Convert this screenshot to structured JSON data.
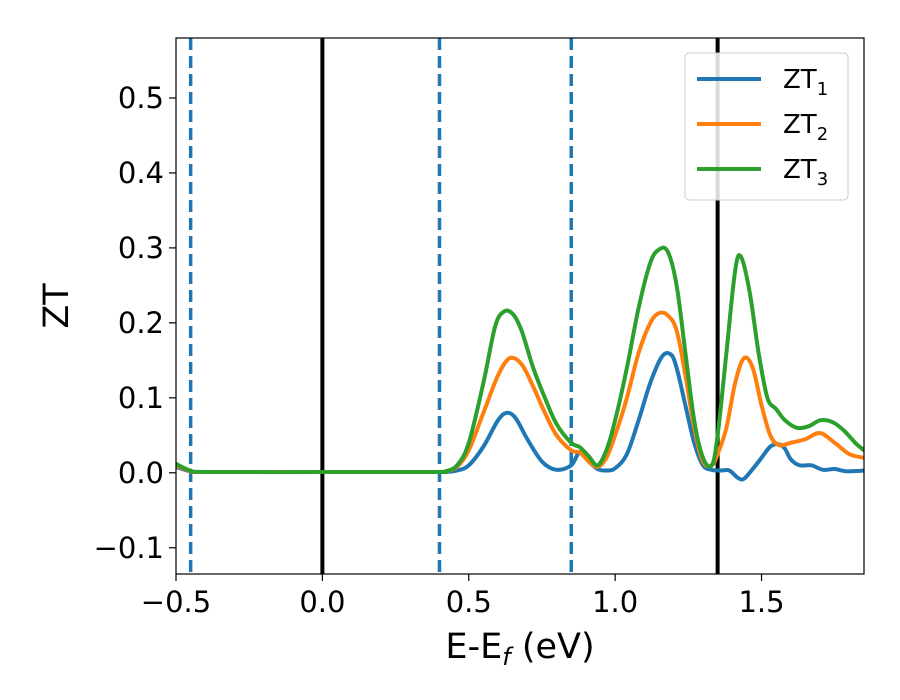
{
  "chart_data": {
    "type": "line",
    "title": "",
    "xlabel": {
      "main": "E-E",
      "sub": "f",
      "tail": " (eV)"
    },
    "ylabel": "ZT",
    "xlim": [
      -0.5,
      1.85
    ],
    "ylim": [
      -0.135,
      0.58
    ],
    "xticks": [
      -0.5,
      0.0,
      0.5,
      1.0,
      1.5
    ],
    "xtick_labels": [
      "−0.5",
      "0.0",
      "0.5",
      "1.0",
      "1.5"
    ],
    "yticks": [
      -0.1,
      0.0,
      0.1,
      0.2,
      0.3,
      0.4,
      0.5
    ],
    "ytick_labels": [
      "−0.1",
      "0.0",
      "0.1",
      "0.2",
      "0.3",
      "0.4",
      "0.5"
    ],
    "grid": false,
    "legend_position": "top-right",
    "vlines": [
      {
        "x": -0.45,
        "style": "dashed",
        "color": "#1f77b4"
      },
      {
        "x": 0.0,
        "style": "solid",
        "color": "#000000"
      },
      {
        "x": 0.4,
        "style": "dashed",
        "color": "#1f77b4"
      },
      {
        "x": 0.85,
        "style": "dashed",
        "color": "#1f77b4"
      },
      {
        "x": 1.35,
        "style": "solid",
        "color": "#000000"
      }
    ],
    "series": [
      {
        "name": "ZT",
        "name_sub": "1",
        "color": "#1f77b4",
        "x": [
          -0.5,
          -0.47,
          -0.45,
          -0.4,
          0.0,
          0.38,
          0.42,
          0.46,
          0.5,
          0.55,
          0.6,
          0.63,
          0.66,
          0.7,
          0.75,
          0.8,
          0.85,
          0.88,
          0.91,
          0.94,
          0.97,
          1.0,
          1.04,
          1.08,
          1.12,
          1.16,
          1.19,
          1.21,
          1.24,
          1.27,
          1.3,
          1.33,
          1.36,
          1.39,
          1.42,
          1.44,
          1.47,
          1.5,
          1.53,
          1.56,
          1.58,
          1.6,
          1.63,
          1.67,
          1.71,
          1.75,
          1.79,
          1.85
        ],
        "y": [
          0.008,
          0.004,
          0.002,
          0.001,
          0.001,
          0.001,
          0.001,
          0.003,
          0.01,
          0.035,
          0.07,
          0.08,
          0.073,
          0.045,
          0.015,
          0.004,
          0.01,
          0.028,
          0.015,
          0.005,
          0.003,
          0.006,
          0.025,
          0.07,
          0.12,
          0.155,
          0.158,
          0.14,
          0.09,
          0.04,
          0.01,
          0.004,
          0.003,
          0.003,
          -0.007,
          -0.008,
          0.005,
          0.02,
          0.035,
          0.038,
          0.032,
          0.018,
          0.01,
          0.01,
          0.004,
          0.005,
          0.002,
          0.003
        ]
      },
      {
        "name": "ZT",
        "name_sub": "2",
        "color": "#ff7f0e",
        "x": [
          -0.5,
          -0.47,
          -0.45,
          -0.4,
          0.0,
          0.38,
          0.42,
          0.46,
          0.5,
          0.55,
          0.6,
          0.64,
          0.68,
          0.72,
          0.76,
          0.8,
          0.85,
          0.88,
          0.91,
          0.94,
          0.97,
          1.0,
          1.04,
          1.08,
          1.12,
          1.15,
          1.18,
          1.21,
          1.24,
          1.27,
          1.3,
          1.33,
          1.35,
          1.38,
          1.41,
          1.44,
          1.47,
          1.5,
          1.53,
          1.56,
          1.6,
          1.65,
          1.7,
          1.75,
          1.8,
          1.85
        ],
        "y": [
          0.01,
          0.005,
          0.002,
          0.001,
          0.001,
          0.001,
          0.002,
          0.008,
          0.03,
          0.08,
          0.13,
          0.153,
          0.145,
          0.115,
          0.08,
          0.05,
          0.03,
          0.027,
          0.015,
          0.008,
          0.02,
          0.05,
          0.1,
          0.16,
          0.2,
          0.213,
          0.21,
          0.19,
          0.13,
          0.06,
          0.015,
          0.01,
          0.025,
          0.06,
          0.12,
          0.153,
          0.14,
          0.09,
          0.05,
          0.037,
          0.04,
          0.045,
          0.053,
          0.04,
          0.025,
          0.02
        ]
      },
      {
        "name": "ZT",
        "name_sub": "3",
        "color": "#2ca02c",
        "x": [
          -0.5,
          -0.47,
          -0.45,
          -0.4,
          0.0,
          0.38,
          0.42,
          0.46,
          0.5,
          0.55,
          0.59,
          0.62,
          0.65,
          0.68,
          0.72,
          0.76,
          0.8,
          0.85,
          0.88,
          0.91,
          0.94,
          0.97,
          1.0,
          1.04,
          1.08,
          1.12,
          1.15,
          1.18,
          1.21,
          1.24,
          1.27,
          1.3,
          1.33,
          1.35,
          1.38,
          1.41,
          1.43,
          1.46,
          1.49,
          1.52,
          1.55,
          1.58,
          1.62,
          1.66,
          1.7,
          1.74,
          1.78,
          1.82,
          1.85
        ],
        "y": [
          0.012,
          0.006,
          0.003,
          0.001,
          0.001,
          0.001,
          0.002,
          0.01,
          0.04,
          0.12,
          0.195,
          0.215,
          0.212,
          0.19,
          0.14,
          0.1,
          0.065,
          0.04,
          0.034,
          0.022,
          0.01,
          0.03,
          0.07,
          0.14,
          0.22,
          0.28,
          0.298,
          0.295,
          0.25,
          0.16,
          0.07,
          0.02,
          0.01,
          0.05,
          0.16,
          0.27,
          0.288,
          0.24,
          0.16,
          0.1,
          0.085,
          0.07,
          0.06,
          0.062,
          0.07,
          0.068,
          0.057,
          0.04,
          0.03
        ]
      }
    ]
  }
}
